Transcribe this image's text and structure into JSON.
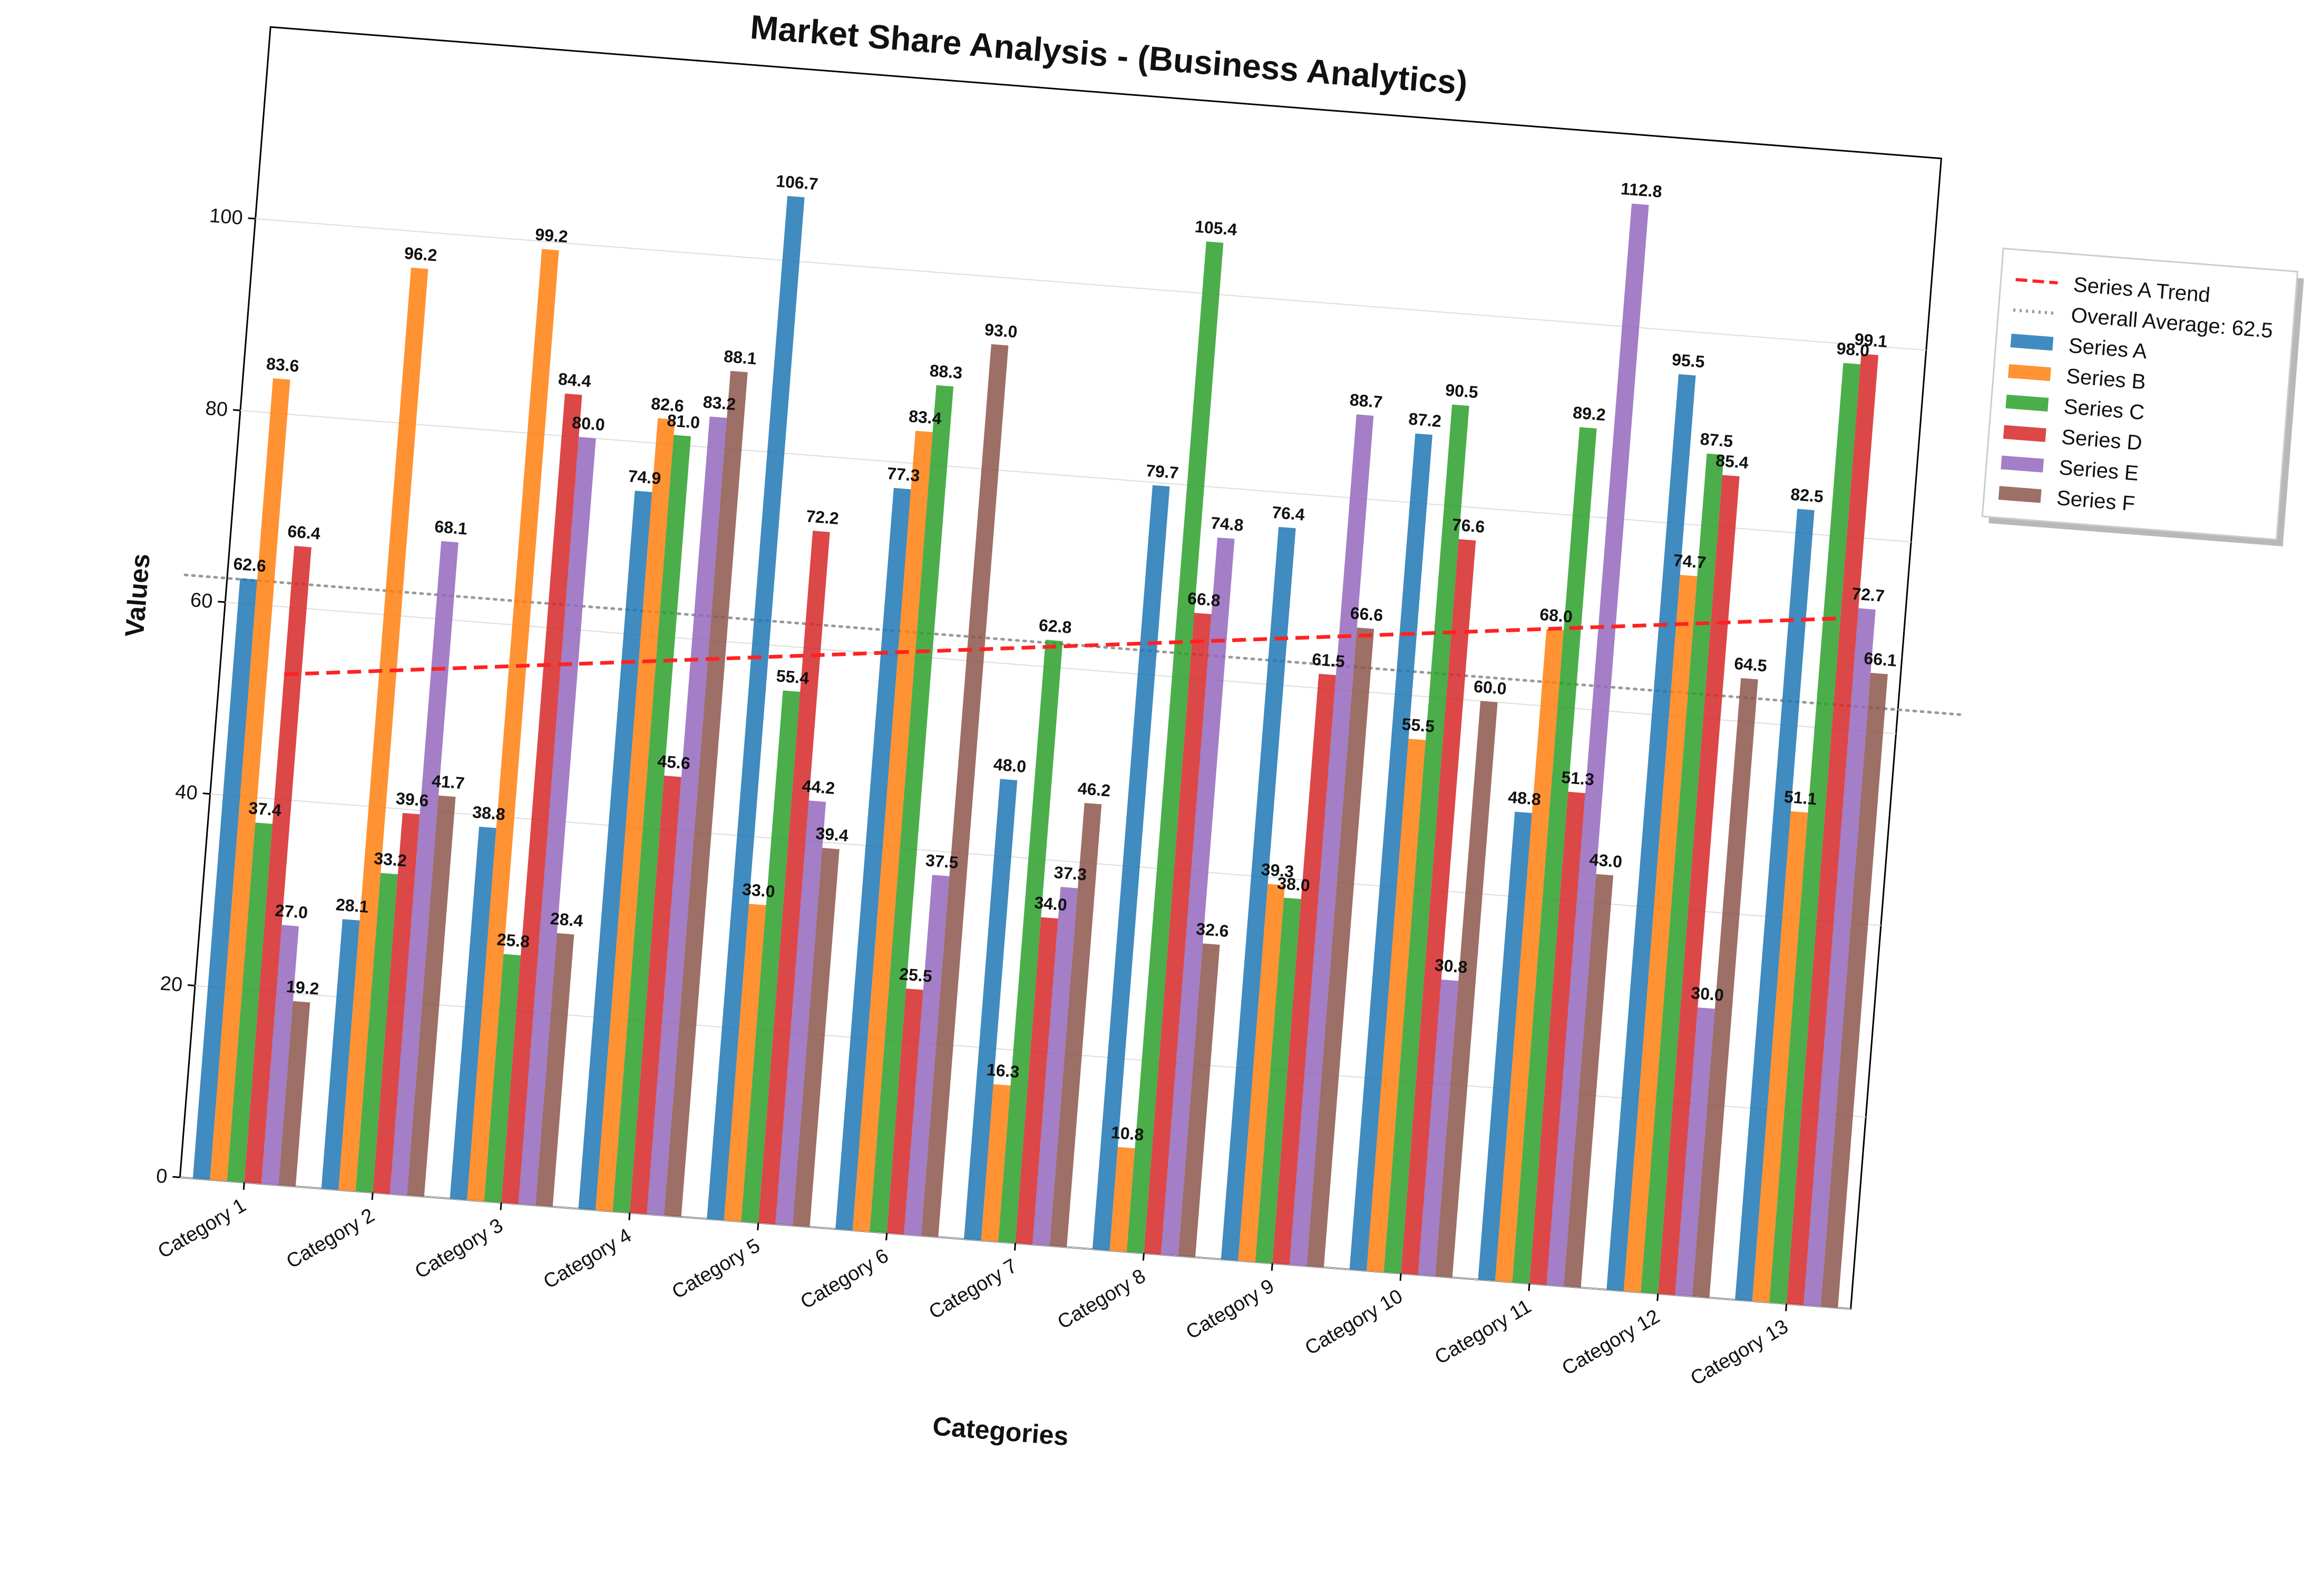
{
  "chart_data": {
    "type": "bar",
    "title": "Market Share Analysis - (Business Analytics)",
    "xlabel": "Categories",
    "ylabel": "Values",
    "ylim": [
      0,
      120
    ],
    "yticks": [
      "0",
      "20",
      "40",
      "60",
      "80",
      "100"
    ],
    "grid": "horizontal",
    "legend_position": "outside-right",
    "categories": [
      "Category 1",
      "Category 2",
      "Category 3",
      "Category 4",
      "Category 5",
      "Category 6",
      "Category 7",
      "Category 8",
      "Category 9",
      "Category 10",
      "Category 11",
      "Category 12",
      "Category 13"
    ],
    "series": [
      {
        "name": "Series A",
        "color": "#1f77b4",
        "values": [
          62.6,
          28.1,
          38.8,
          74.9,
          106.7,
          77.3,
          48.0,
          79.7,
          76.4,
          87.2,
          48.8,
          95.5,
          82.5
        ]
      },
      {
        "name": "Series B",
        "color": "#ff7f0e",
        "values": [
          83.6,
          96.2,
          99.2,
          82.6,
          33.0,
          83.4,
          16.3,
          10.8,
          39.3,
          55.5,
          68.0,
          74.7,
          51.1
        ]
      },
      {
        "name": "Series C",
        "color": "#2ca02c",
        "values": [
          37.4,
          33.2,
          25.8,
          81.0,
          55.4,
          88.3,
          62.8,
          105.4,
          38.0,
          90.5,
          89.2,
          87.5,
          98.0
        ]
      },
      {
        "name": "Series D",
        "color": "#d62728",
        "values": [
          66.4,
          39.6,
          84.4,
          45.6,
          72.2,
          25.5,
          34.0,
          66.8,
          61.5,
          76.6,
          51.3,
          85.4,
          99.1
        ]
      },
      {
        "name": "Series E",
        "color": "#9467bd",
        "values": [
          27.0,
          68.1,
          80.0,
          83.2,
          44.2,
          37.5,
          37.3,
          74.8,
          88.7,
          30.8,
          112.8,
          30.0,
          72.7
        ]
      },
      {
        "name": "Series F",
        "color": "#8c564b",
        "values": [
          19.2,
          41.7,
          28.4,
          88.1,
          39.4,
          93.0,
          46.2,
          32.6,
          66.6,
          60.0,
          43.0,
          64.5,
          66.1
        ]
      }
    ],
    "trend_line": {
      "label": "Series A Trend",
      "color": "#ff2222",
      "start": 53.0,
      "end": 71.5
    },
    "average_line": {
      "label": "Overall Average: 62.5",
      "color": "#999999",
      "value": 62.5
    },
    "legend": [
      "Series A Trend",
      "Overall Average: 62.5",
      "Series A",
      "Series B",
      "Series C",
      "Series D",
      "Series E",
      "Series F"
    ]
  }
}
